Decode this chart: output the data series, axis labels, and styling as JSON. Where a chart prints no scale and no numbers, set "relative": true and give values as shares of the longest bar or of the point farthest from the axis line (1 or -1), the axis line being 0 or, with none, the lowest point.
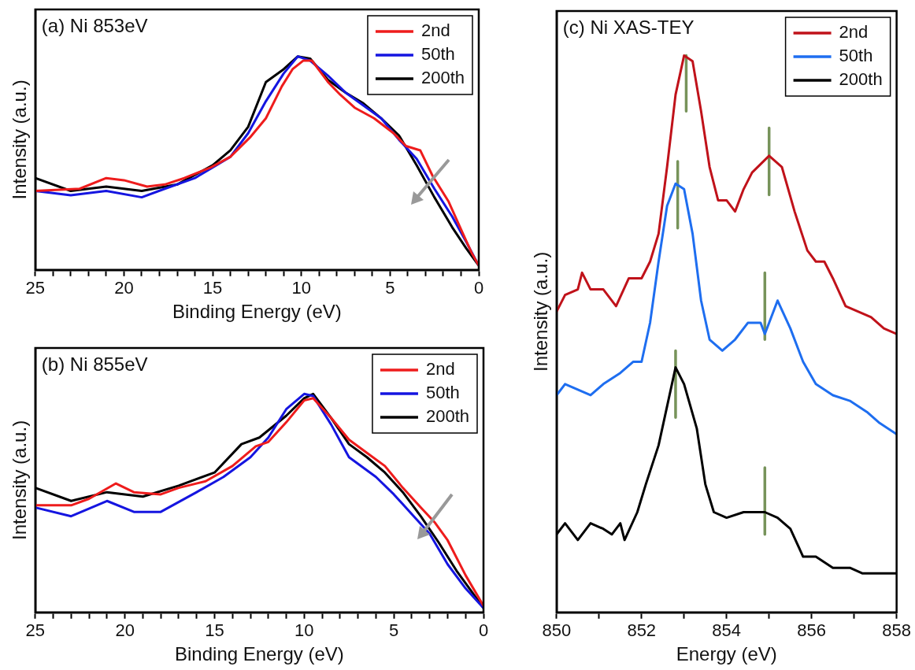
{
  "chart_data": [
    {
      "type": "line",
      "title": "(a) Ni 853eV",
      "xlabel": "Binding Energy (eV)",
      "ylabel": "Intensity (a.u.)",
      "relative": true,
      "legend": "top right",
      "xlim": [
        25,
        0
      ],
      "xticks": [
        0,
        {
          "value": 1,
          "label": null
        },
        {
          "value": 2,
          "label": null
        },
        {
          "value": 3,
          "label": null
        },
        {
          "value": 4,
          "label": null
        },
        5,
        {
          "value": 6,
          "label": null
        },
        {
          "value": 7,
          "label": null
        },
        {
          "value": 8,
          "label": null
        },
        {
          "value": 9,
          "label": null
        },
        10,
        {
          "value": 11,
          "label": null
        },
        {
          "value": 12,
          "label": null
        },
        {
          "value": 13,
          "label": null
        },
        {
          "value": 14,
          "label": null
        },
        15,
        {
          "value": 16,
          "label": null
        },
        {
          "value": 17,
          "label": null
        },
        {
          "value": 18,
          "label": null
        },
        {
          "value": 19,
          "label": null
        },
        20,
        {
          "value": 21,
          "label": null
        },
        {
          "value": 22,
          "label": null
        },
        {
          "value": 23,
          "label": null
        },
        {
          "value": 24,
          "label": null
        },
        25
      ],
      "series": [
        {
          "name": "2nd",
          "color": "#ee1c1c",
          "x": [
            25,
            22.5,
            21,
            20,
            18.7,
            17.7,
            16.6,
            15.1,
            14,
            12.9,
            12,
            11.1,
            10.5,
            9.9,
            9.4,
            8.5,
            7.8,
            7,
            5.9,
            4.8,
            4.1,
            3.3,
            2.6,
            1.7,
            1,
            0.4,
            0
          ],
          "values": [
            0.37,
            0.38,
            0.43,
            0.42,
            0.39,
            0.4,
            0.43,
            0.48,
            0.53,
            0.62,
            0.71,
            0.86,
            0.94,
            0.98,
            0.98,
            0.88,
            0.82,
            0.76,
            0.71,
            0.64,
            0.58,
            0.56,
            0.44,
            0.32,
            0.19,
            0.08,
            0.02
          ]
        },
        {
          "name": "50th",
          "color": "#1515e0",
          "x": [
            25,
            23,
            21,
            19,
            17.7,
            16,
            15,
            14,
            13,
            12,
            11,
            10.2,
            9.5,
            8.5,
            7.5,
            6.5,
            5.5,
            4.5,
            3.5,
            2.5,
            1.5,
            0.7,
            0
          ],
          "values": [
            0.37,
            0.35,
            0.37,
            0.34,
            0.38,
            0.43,
            0.48,
            0.53,
            0.64,
            0.79,
            0.92,
            1,
            0.98,
            0.91,
            0.83,
            0.77,
            0.71,
            0.61,
            0.52,
            0.38,
            0.25,
            0.13,
            0.02
          ]
        },
        {
          "name": "200th",
          "color": "#000000",
          "x": [
            25,
            23,
            21,
            19,
            17,
            15,
            14,
            13,
            12,
            11,
            10.2,
            9.5,
            8.5,
            7.5,
            6.5,
            5.5,
            4.5,
            3.5,
            2.5,
            1.5,
            0.7,
            0
          ],
          "values": [
            0.43,
            0.37,
            0.39,
            0.37,
            0.4,
            0.49,
            0.56,
            0.67,
            0.88,
            0.94,
            1,
            0.99,
            0.89,
            0.83,
            0.78,
            0.71,
            0.63,
            0.49,
            0.34,
            0.2,
            0.1,
            0.02
          ]
        }
      ]
    },
    {
      "type": "line",
      "title": "(b) Ni 855eV",
      "xlabel": "Binding Energy (eV)",
      "ylabel": "Intensity (a.u.)",
      "relative": true,
      "legend": "top right",
      "xlim": [
        25,
        0
      ],
      "xticks": [
        0,
        {
          "value": 1,
          "label": null
        },
        {
          "value": 2,
          "label": null
        },
        {
          "value": 3,
          "label": null
        },
        {
          "value": 4,
          "label": null
        },
        5,
        {
          "value": 6,
          "label": null
        },
        {
          "value": 7,
          "label": null
        },
        {
          "value": 8,
          "label": null
        },
        {
          "value": 9,
          "label": null
        },
        10,
        {
          "value": 11,
          "label": null
        },
        {
          "value": 12,
          "label": null
        },
        {
          "value": 13,
          "label": null
        },
        {
          "value": 14,
          "label": null
        },
        15,
        {
          "value": 16,
          "label": null
        },
        {
          "value": 17,
          "label": null
        },
        {
          "value": 18,
          "label": null
        },
        {
          "value": 19,
          "label": null
        },
        20,
        {
          "value": 21,
          "label": null
        },
        {
          "value": 22,
          "label": null
        },
        {
          "value": 23,
          "label": null
        },
        {
          "value": 24,
          "label": null
        },
        25
      ],
      "series": [
        {
          "name": "2nd",
          "color": "#ee1c1c",
          "x": [
            25,
            23,
            22,
            20.5,
            19.5,
            18,
            17,
            15.5,
            14,
            12.7,
            12,
            11,
            10,
            9.5,
            8.5,
            7.5,
            6.5,
            5.5,
            4.5,
            3.5,
            2.7,
            2,
            1,
            0
          ],
          "values": [
            0.49,
            0.49,
            0.52,
            0.59,
            0.55,
            0.54,
            0.57,
            0.6,
            0.67,
            0.76,
            0.78,
            0.87,
            0.97,
            0.98,
            0.89,
            0.79,
            0.73,
            0.67,
            0.57,
            0.48,
            0.41,
            0.33,
            0.17,
            0.03
          ]
        },
        {
          "name": "50th",
          "color": "#1515e0",
          "x": [
            25,
            23,
            21,
            19.5,
            18,
            16,
            14.5,
            13,
            12,
            11,
            10,
            9.5,
            8.5,
            7.5,
            6,
            5,
            4,
            3,
            2,
            1,
            0
          ],
          "values": [
            0.48,
            0.44,
            0.51,
            0.46,
            0.46,
            0.55,
            0.62,
            0.71,
            0.8,
            0.93,
            1,
            0.99,
            0.86,
            0.71,
            0.62,
            0.54,
            0.45,
            0.36,
            0.22,
            0.11,
            0.02
          ]
        },
        {
          "name": "200th",
          "color": "#000000",
          "x": [
            25,
            23,
            21,
            19,
            17,
            15,
            13.5,
            12.5,
            11,
            10,
            9.5,
            8.5,
            7.5,
            6.5,
            5.5,
            4.5,
            3.5,
            2.5,
            1.5,
            0.7,
            0
          ],
          "values": [
            0.57,
            0.51,
            0.55,
            0.53,
            0.58,
            0.64,
            0.77,
            0.8,
            0.9,
            0.98,
            1,
            0.89,
            0.77,
            0.71,
            0.64,
            0.55,
            0.44,
            0.32,
            0.19,
            0.1,
            0.02
          ]
        }
      ]
    },
    {
      "type": "line",
      "title": "(c) Ni XAS-TEY",
      "xlabel": "Energy (eV)",
      "ylabel": "Intensity (a.u.)",
      "relative": true,
      "legend": "top right",
      "xlim": [
        850,
        858
      ],
      "xticks": [
        850,
        {
          "value": 851,
          "label": null
        },
        852,
        {
          "value": 853,
          "label": null
        },
        854,
        {
          "value": 855,
          "label": null
        },
        856,
        {
          "value": 857,
          "label": null
        },
        858
      ],
      "series": [
        {
          "name": "2nd",
          "color": "#c0121a",
          "x": [
            850,
            850.2,
            850.5,
            850.6,
            850.8,
            851.1,
            851.4,
            851.7,
            852,
            852.2,
            852.4,
            852.6,
            852.8,
            853,
            853.2,
            853.4,
            853.6,
            853.8,
            854,
            854.2,
            854.4,
            854.6,
            855,
            855.3,
            855.6,
            855.9,
            856.1,
            856.3,
            856.5,
            856.8,
            857.1,
            857.4,
            857.7,
            858
          ],
          "values": [
            0.54,
            0.57,
            0.58,
            0.61,
            0.58,
            0.58,
            0.55,
            0.6,
            0.6,
            0.63,
            0.68,
            0.8,
            0.93,
            1,
            0.99,
            0.9,
            0.8,
            0.74,
            0.74,
            0.72,
            0.76,
            0.79,
            0.82,
            0.8,
            0.72,
            0.65,
            0.63,
            0.63,
            0.6,
            0.55,
            0.54,
            0.53,
            0.51,
            0.5
          ]
        },
        {
          "name": "50th",
          "color": "#1e6ef0",
          "x": [
            850,
            850.2,
            850.5,
            850.8,
            851.1,
            851.5,
            851.8,
            852,
            852.2,
            852.4,
            852.6,
            852.8,
            853,
            853.2,
            853.4,
            853.6,
            853.9,
            854.2,
            854.5,
            854.8,
            854.9,
            855.2,
            855.5,
            855.8,
            856.1,
            856.5,
            856.9,
            857.3,
            857.6,
            858
          ],
          "values": [
            0.39,
            0.41,
            0.4,
            0.39,
            0.41,
            0.43,
            0.45,
            0.45,
            0.52,
            0.63,
            0.73,
            0.77,
            0.76,
            0.68,
            0.56,
            0.49,
            0.47,
            0.49,
            0.52,
            0.52,
            0.5,
            0.56,
            0.51,
            0.45,
            0.41,
            0.39,
            0.38,
            0.36,
            0.34,
            0.32
          ]
        },
        {
          "name": "200th",
          "color": "#000000",
          "x": [
            850,
            850.2,
            850.5,
            850.8,
            851.1,
            851.3,
            851.5,
            851.6,
            851.9,
            852.1,
            852.4,
            852.6,
            852.8,
            853,
            853.3,
            853.5,
            853.7,
            854,
            854.4,
            854.9,
            855.2,
            855.5,
            855.8,
            856.1,
            856.5,
            856.9,
            857.2,
            857.6,
            858
          ],
          "values": [
            0.14,
            0.16,
            0.13,
            0.16,
            0.15,
            0.14,
            0.16,
            0.13,
            0.18,
            0.23,
            0.3,
            0.37,
            0.44,
            0.41,
            0.33,
            0.23,
            0.18,
            0.17,
            0.18,
            0.18,
            0.17,
            0.15,
            0.1,
            0.1,
            0.08,
            0.08,
            0.07,
            0.07,
            0.07
          ]
        },
        {
          "type": "line",
          "color": "#77935a",
          "x": [
            853.05,
            853.05
          ],
          "values": [
            1,
            0.9
          ]
        },
        {
          "type": "line",
          "color": "#77935a",
          "x": [
            855,
            855
          ],
          "values": [
            0.87,
            0.75
          ]
        },
        {
          "type": "line",
          "color": "#77935a",
          "x": [
            852.85,
            852.85
          ],
          "values": [
            0.81,
            0.69
          ]
        },
        {
          "type": "line",
          "color": "#77935a",
          "x": [
            854.9,
            854.9
          ],
          "values": [
            0.61,
            0.49
          ]
        },
        {
          "type": "line",
          "color": "#77935a",
          "x": [
            852.8,
            852.8
          ],
          "values": [
            0.47,
            0.35
          ]
        },
        {
          "type": "line",
          "color": "#77935a",
          "x": [
            854.9,
            854.9
          ],
          "values": [
            0.26,
            0.14
          ]
        }
      ]
    }
  ]
}
